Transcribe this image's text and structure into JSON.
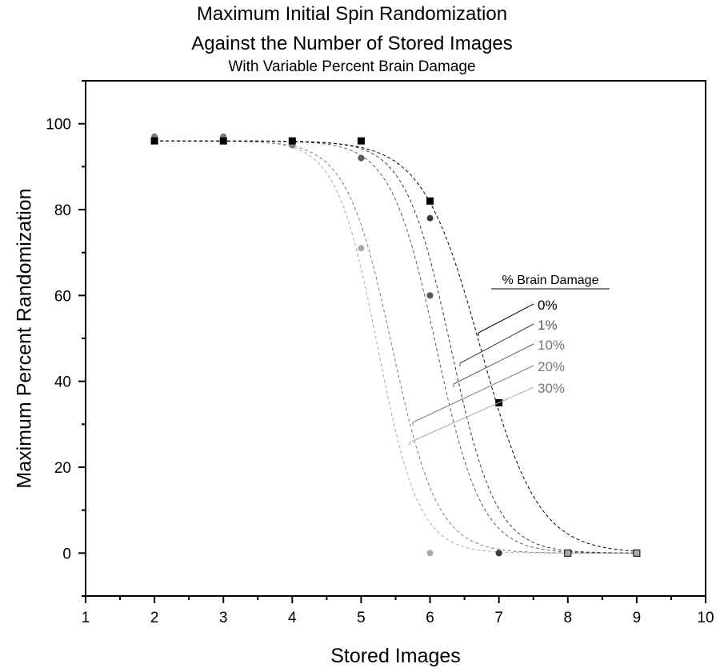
{
  "chart_data": {
    "type": "scatter",
    "title": "Maximum Initial Spin Randomization",
    "title_line2": "Against the Number of Stored Images",
    "subtitle": "With Variable Percent Brain Damage",
    "xlabel": "Stored Images",
    "ylabel": "Maximum Percent Randomization",
    "xlim": [
      1,
      10
    ],
    "ylim": [
      -10,
      110
    ],
    "x_ticks": [
      1,
      2,
      3,
      4,
      5,
      6,
      7,
      8,
      9,
      10
    ],
    "y_ticks": [
      0,
      20,
      40,
      60,
      80,
      100
    ],
    "grid": false,
    "legend": {
      "title": "% Brain Damage",
      "placement": "right-middle",
      "entries": [
        "0%",
        "1%",
        "10%",
        "20%",
        "30%"
      ]
    },
    "series": [
      {
        "name": "0%",
        "color": "#000000",
        "marker": "square",
        "x": [
          2,
          3,
          4,
          5,
          6,
          7,
          8,
          9
        ],
        "y": [
          96,
          96,
          96,
          96,
          82,
          35,
          0,
          0
        ],
        "fit": {
          "type": "sigmoid",
          "top": 96,
          "bottom": 0,
          "x50": 6.73,
          "slope": 0.42
        }
      },
      {
        "name": "1%",
        "color": "#3c3c3c",
        "marker": "circle",
        "x": [
          2,
          3,
          4,
          5,
          6,
          7,
          8,
          9
        ],
        "y": [
          96,
          96,
          96,
          96,
          78,
          0,
          0,
          0
        ],
        "fit": {
          "type": "sigmoid",
          "top": 96,
          "bottom": 0,
          "x50": 6.3,
          "slope": 0.33
        }
      },
      {
        "name": "10%",
        "color": "#5a5a5a",
        "marker": "circle",
        "x": [
          2,
          3,
          4,
          5,
          6,
          7,
          8,
          9
        ],
        "y": [
          96,
          96,
          96,
          92,
          60,
          0,
          0,
          0
        ],
        "fit": {
          "type": "sigmoid",
          "top": 96,
          "bottom": 0,
          "x50": 6.09,
          "slope": 0.33
        }
      },
      {
        "name": "20%",
        "color": "#7c7c7c",
        "marker": "circle",
        "x": [
          2,
          3,
          4,
          5,
          6,
          7,
          8,
          9
        ],
        "y": [
          97,
          97,
          95,
          92,
          60,
          0,
          0,
          0
        ],
        "fit": {
          "type": "sigmoid",
          "top": 96,
          "bottom": 0,
          "x50": 5.45,
          "slope": 0.33
        }
      },
      {
        "name": "30%",
        "color": "#aaaaaa",
        "marker": "circle",
        "x": [
          2,
          3,
          4,
          5,
          6,
          7,
          8,
          9
        ],
        "y": [
          97,
          97,
          95,
          71,
          0,
          0,
          0,
          0
        ],
        "fit": {
          "type": "sigmoid",
          "top": 96,
          "bottom": 0,
          "x50": 5.24,
          "slope": 0.3
        }
      }
    ]
  }
}
